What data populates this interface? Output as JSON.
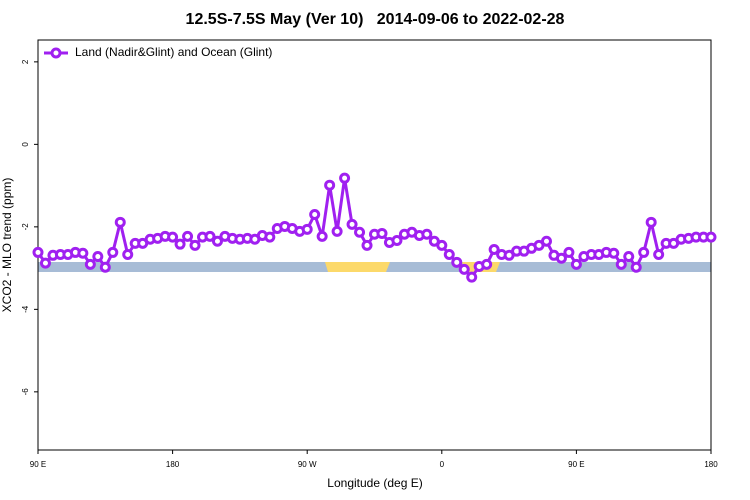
{
  "chart_data": {
    "type": "line",
    "title": "12.5S-7.5S May (Ver 10)   2014-09-06 to 2022-02-28",
    "x_label": "Longitude (deg E)",
    "y_label": "XCO2 - MLO trend (ppm)",
    "legend_position": "top-left",
    "x": [
      90,
      95,
      100,
      105,
      110,
      115,
      120,
      125,
      130,
      135,
      140,
      145,
      150,
      155,
      160,
      165,
      170,
      175,
      180,
      185,
      190,
      195,
      200,
      205,
      210,
      215,
      220,
      225,
      230,
      235,
      240,
      245,
      250,
      255,
      260,
      265,
      270,
      275,
      280,
      285,
      290,
      295,
      300,
      305,
      310,
      315,
      320,
      325,
      330,
      335,
      340,
      345,
      350,
      355,
      360,
      365,
      370,
      375,
      380,
      385,
      390,
      395,
      400,
      405,
      410,
      415,
      420,
      425,
      430,
      435,
      440,
      445,
      450,
      455,
      460,
      465,
      470,
      475,
      480,
      485,
      490,
      495,
      500,
      505,
      510,
      515,
      520,
      525,
      530,
      535,
      540
    ],
    "series": [
      {
        "name": "Land (Nadir&Glint) and Ocean (Glint)",
        "color": "#a020f0",
        "values": [
          -2.62,
          -2.88,
          -2.69,
          -2.67,
          -2.67,
          -2.62,
          -2.64,
          -2.91,
          -2.72,
          -2.98,
          -2.62,
          -1.89,
          -2.67,
          -2.4,
          -2.4,
          -2.3,
          -2.28,
          -2.23,
          -2.25,
          -2.42,
          -2.23,
          -2.45,
          -2.25,
          -2.23,
          -2.35,
          -2.23,
          -2.28,
          -2.3,
          -2.28,
          -2.3,
          -2.21,
          -2.25,
          -2.04,
          -1.99,
          -2.04,
          -2.11,
          -2.06,
          -1.7,
          -2.23,
          -0.99,
          -2.11,
          -0.82,
          -1.94,
          -2.13,
          -2.45,
          -2.18,
          -2.16,
          -2.38,
          -2.33,
          -2.18,
          -2.13,
          -2.21,
          -2.18,
          -2.35,
          -2.45,
          -2.67,
          -2.86,
          -3.03,
          -3.22,
          -2.96,
          -2.91,
          -2.55,
          -2.67,
          -2.69,
          -2.59,
          -2.59,
          -2.52,
          -2.45,
          -2.35,
          -2.69,
          -2.76,
          -2.62,
          -2.91,
          -2.72,
          -2.67,
          -2.67,
          -2.62,
          -2.64,
          -2.91,
          -2.72,
          -2.98,
          -2.62,
          -1.89,
          -2.67,
          -2.4,
          -2.4,
          -2.3,
          -2.28,
          -2.25,
          -2.25,
          -2.25
        ]
      }
    ],
    "xlim": [
      90,
      540
    ],
    "xticks": [
      {
        "value": 90,
        "label": "90 E"
      },
      180,
      {
        "value": 270,
        "label": "90 W"
      },
      {
        "value": 360,
        "label": "0"
      },
      {
        "value": 450,
        "label": "90 E"
      },
      {
        "value": 540,
        "label": "180"
      }
    ],
    "ylim": [
      -7.41,
      2.53
    ],
    "yticks": [
      2,
      0,
      -2,
      -4,
      -6
    ]
  }
}
